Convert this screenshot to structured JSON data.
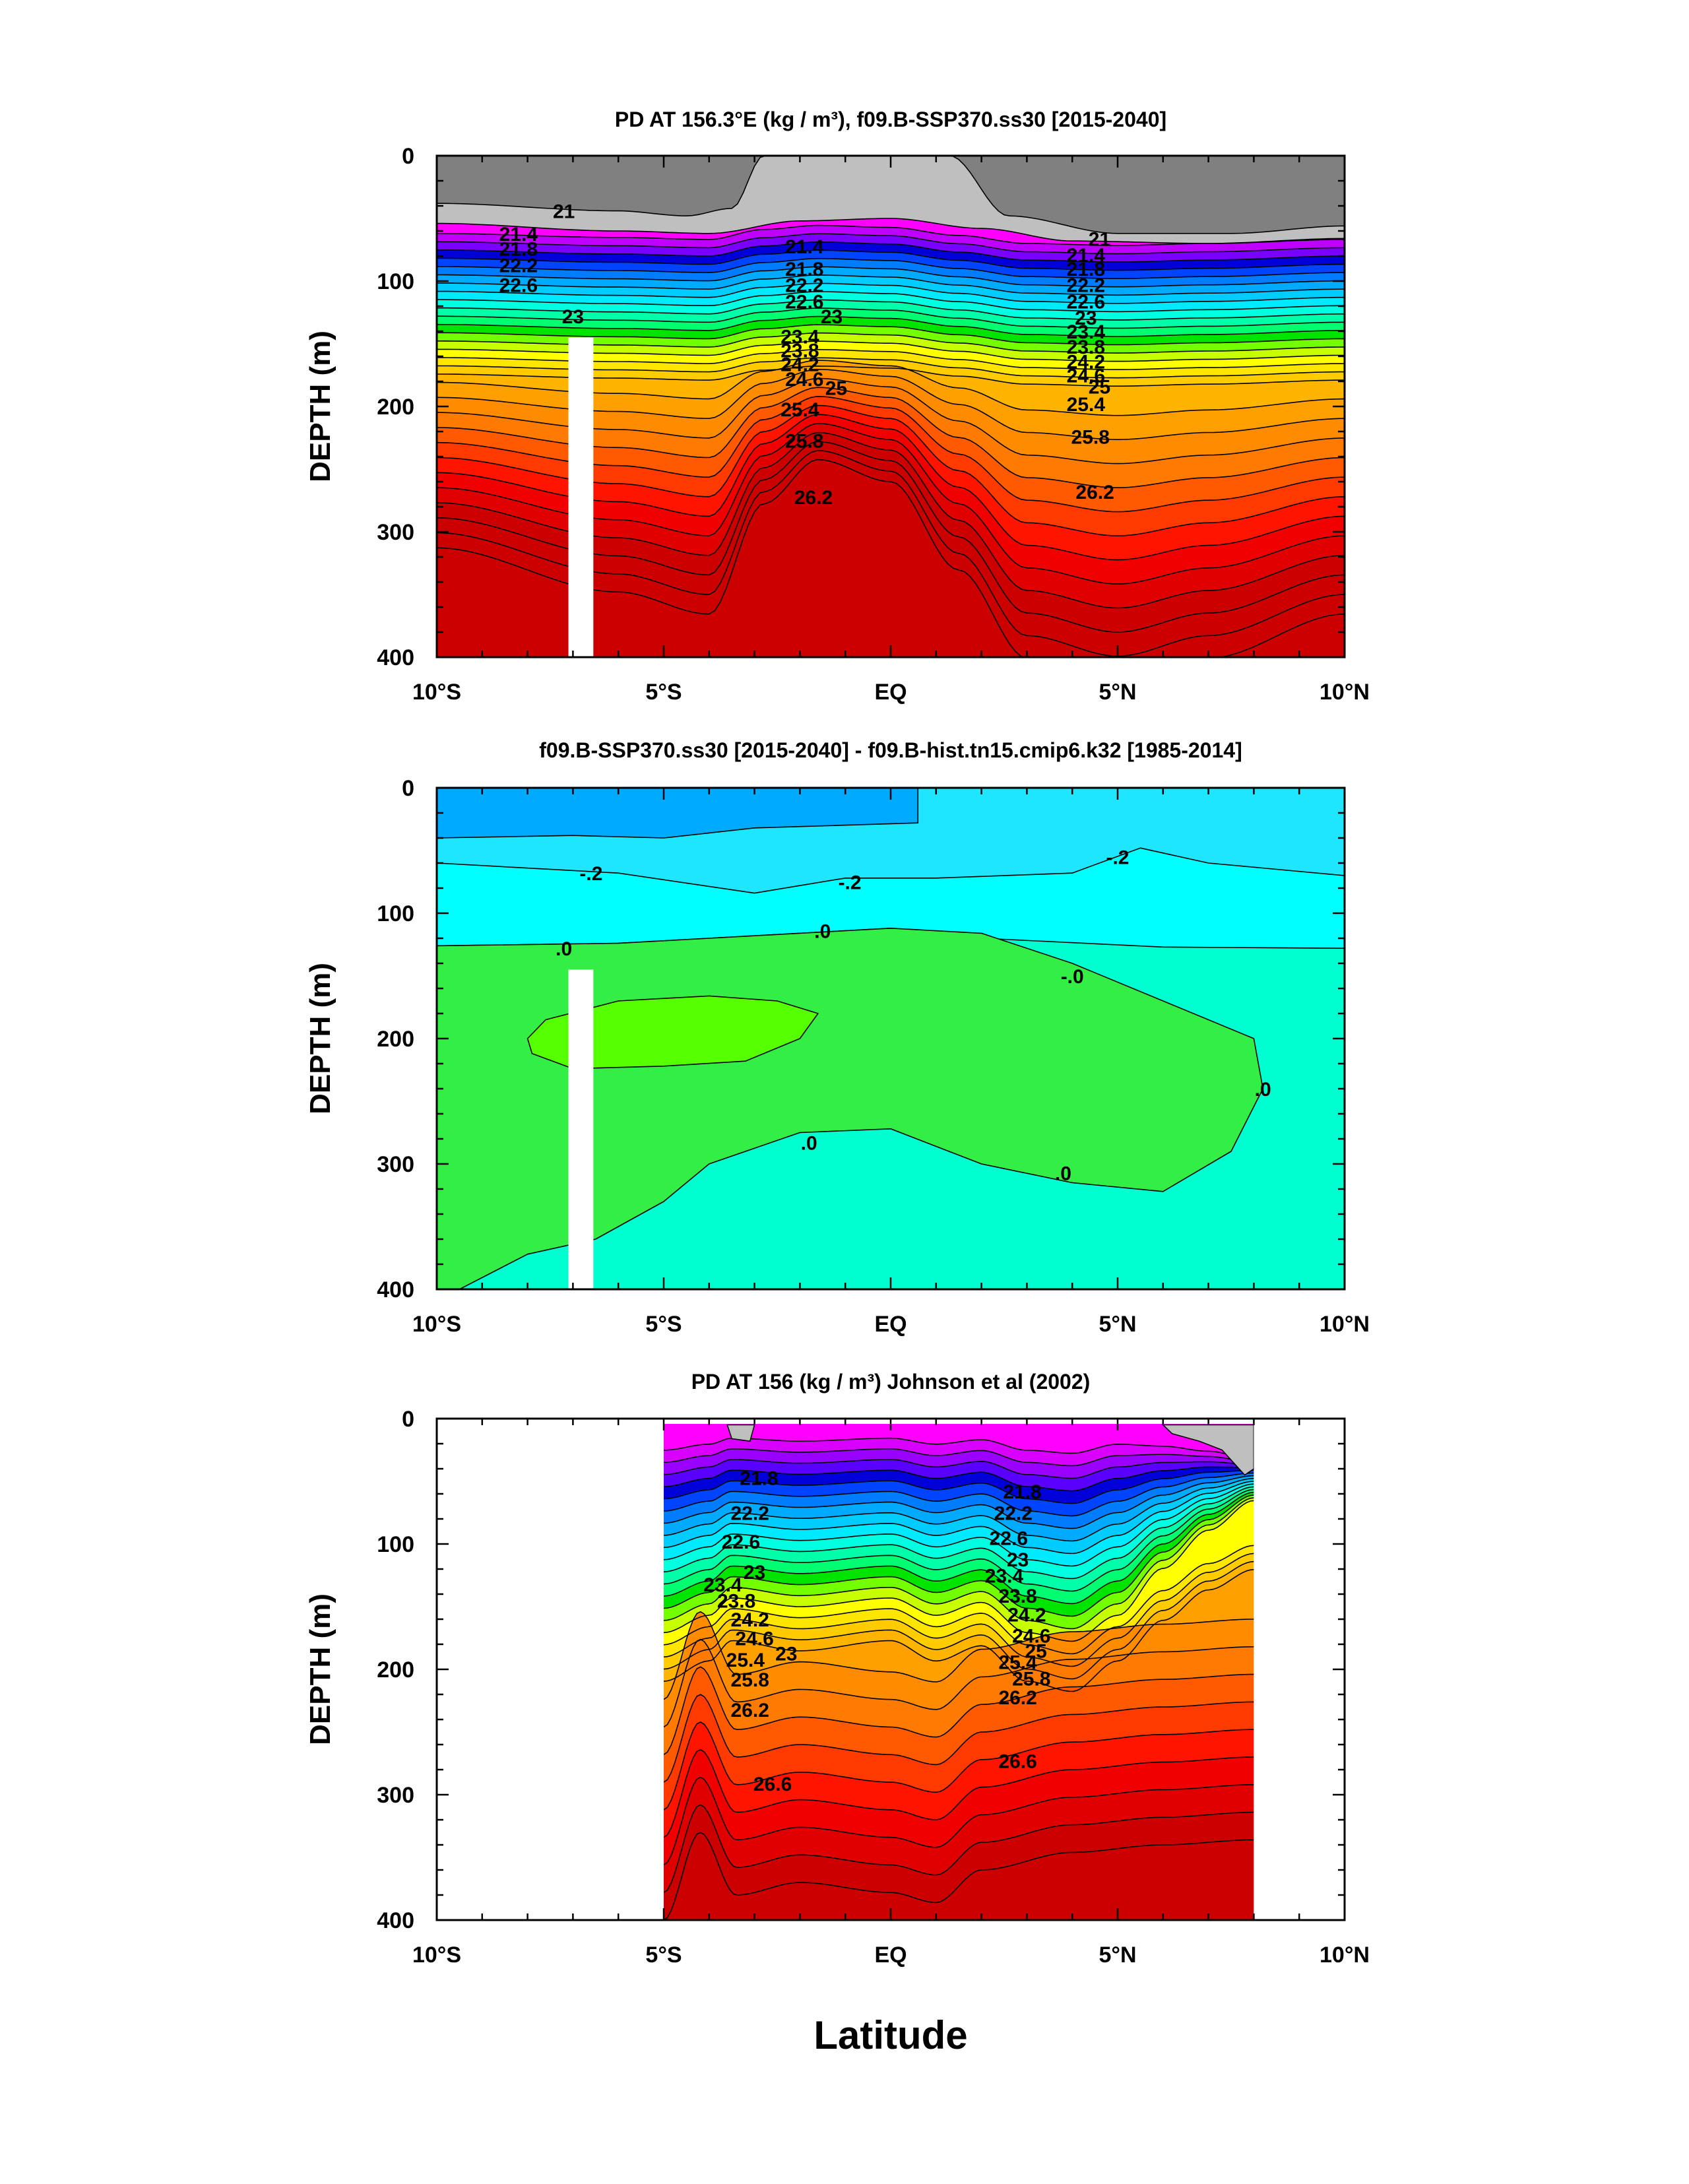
{
  "xlabel": "Latitude",
  "chart_data": [
    {
      "type": "contour",
      "title": "PD AT 156.3°E (kg / m³), f09.B-SSP370.ss30 [2015-2040]",
      "ylabel": "DEPTH (m)",
      "xlim": [
        -10,
        10
      ],
      "ylim": [
        400,
        0
      ],
      "x_ticks": [
        "10°S",
        "5°S",
        "EQ",
        "5°N",
        "10°N"
      ],
      "y_ticks": [
        "0",
        "100",
        "200",
        "300",
        "400"
      ],
      "contour_interval": 0.2,
      "colors": [
        "#808080",
        "#bfbfbf",
        "#ff00ff",
        "#c000ff",
        "#7a00ff",
        "#0000d8",
        "#0044ff",
        "#007cff",
        "#00aaff",
        "#00ccff",
        "#00eaff",
        "#00ffe0",
        "#00ffa8",
        "#00ff70",
        "#00e400",
        "#74ff00",
        "#c8ff00",
        "#ffff00",
        "#ffe600",
        "#ffcc00",
        "#ffb400",
        "#ffa000",
        "#ff8c00",
        "#ff7a00",
        "#ff5a00",
        "#ff3a00",
        "#ff1400",
        "#f00000",
        "#e00000",
        "#cc0000"
      ],
      "contour_labels": [
        {
          "text": "21",
          "lat": -7.2,
          "depth": 44
        },
        {
          "text": "21.4",
          "lat": -8.2,
          "depth": 62
        },
        {
          "text": "21.8",
          "lat": -8.2,
          "depth": 74
        },
        {
          "text": "22.2",
          "lat": -8.2,
          "depth": 87
        },
        {
          "text": "22.6",
          "lat": -8.2,
          "depth": 103
        },
        {
          "text": "23",
          "lat": -7.0,
          "depth": 128
        },
        {
          "text": "21.4",
          "lat": -1.9,
          "depth": 72
        },
        {
          "text": "21.8",
          "lat": -1.9,
          "depth": 90
        },
        {
          "text": "22.2",
          "lat": -1.9,
          "depth": 103
        },
        {
          "text": "22.6",
          "lat": -1.9,
          "depth": 116
        },
        {
          "text": "23",
          "lat": -1.3,
          "depth": 128
        },
        {
          "text": "23.4",
          "lat": -2.0,
          "depth": 144
        },
        {
          "text": "23.8",
          "lat": -2.0,
          "depth": 155
        },
        {
          "text": "24.2",
          "lat": -2.0,
          "depth": 166
        },
        {
          "text": "24.6",
          "lat": -1.9,
          "depth": 178
        },
        {
          "text": "25",
          "lat": -1.2,
          "depth": 185
        },
        {
          "text": "25.4",
          "lat": -2.0,
          "depth": 202
        },
        {
          "text": "25.8",
          "lat": -1.9,
          "depth": 227
        },
        {
          "text": "26.2",
          "lat": -1.7,
          "depth": 272
        },
        {
          "text": "21",
          "lat": 4.6,
          "depth": 66
        },
        {
          "text": "21.4",
          "lat": 4.3,
          "depth": 79
        },
        {
          "text": "21.8",
          "lat": 4.3,
          "depth": 90
        },
        {
          "text": "22.2",
          "lat": 4.3,
          "depth": 103
        },
        {
          "text": "22.6",
          "lat": 4.3,
          "depth": 116
        },
        {
          "text": "23",
          "lat": 4.3,
          "depth": 129
        },
        {
          "text": "23.4",
          "lat": 4.3,
          "depth": 140
        },
        {
          "text": "23.8",
          "lat": 4.3,
          "depth": 152
        },
        {
          "text": "24.2",
          "lat": 4.3,
          "depth": 164
        },
        {
          "text": "24.6",
          "lat": 4.3,
          "depth": 175
        },
        {
          "text": "25",
          "lat": 4.6,
          "depth": 184
        },
        {
          "text": "25.4",
          "lat": 4.3,
          "depth": 198
        },
        {
          "text": "25.8",
          "lat": 4.4,
          "depth": 224
        },
        {
          "text": "26.2",
          "lat": 4.5,
          "depth": 268
        }
      ]
    },
    {
      "type": "contour",
      "title": "f09.B-SSP370.ss30 [2015-2040] - f09.B-hist.tn15.cmip6.k32 [1985-2014]",
      "ylabel": "DEPTH (m)",
      "xlim": [
        -10,
        10
      ],
      "ylim": [
        400,
        0
      ],
      "x_ticks": [
        "10°S",
        "5°S",
        "EQ",
        "5°N",
        "10°N"
      ],
      "y_ticks": [
        "0",
        "100",
        "200",
        "300",
        "400"
      ],
      "colors": [
        "#00aaff",
        "#1ee6ff",
        "#00ffff",
        "#00ffd0",
        "#33ee44",
        "#55ff00"
      ],
      "contour_labels": [
        {
          "text": "-.2",
          "lat": -6.6,
          "depth": 68
        },
        {
          "text": ".0",
          "lat": -7.2,
          "depth": 128
        },
        {
          "text": "-.2",
          "lat": -0.9,
          "depth": 75
        },
        {
          "text": ".0",
          "lat": -1.5,
          "depth": 114
        },
        {
          "text": "-.2",
          "lat": 5.0,
          "depth": 55
        },
        {
          "text": "-.0",
          "lat": 4.0,
          "depth": 150
        },
        {
          "text": ".0",
          "lat": 8.2,
          "depth": 240
        },
        {
          "text": ".0",
          "lat": -1.8,
          "depth": 283
        },
        {
          "text": ".0",
          "lat": 3.8,
          "depth": 307
        }
      ]
    },
    {
      "type": "contour",
      "title": "PD AT 156 (kg / m³) Johnson et al (2002)",
      "ylabel": "DEPTH (m)",
      "xlim": [
        -10,
        10
      ],
      "ylim": [
        400,
        0
      ],
      "data_extent_lat": [
        -5,
        8
      ],
      "x_ticks": [
        "10°S",
        "5°S",
        "EQ",
        "5°N",
        "10°N"
      ],
      "y_ticks": [
        "0",
        "100",
        "200",
        "300",
        "400"
      ],
      "contour_interval": 0.2,
      "colors": [
        "#ff00ff",
        "#d800ff",
        "#9a00ff",
        "#5a00ff",
        "#0000d8",
        "#0044ff",
        "#007cff",
        "#00aaff",
        "#00ccff",
        "#00eaff",
        "#00ffe0",
        "#00ffa8",
        "#00ff70",
        "#00e400",
        "#74ff00",
        "#c8ff00",
        "#ffff00",
        "#ffe600",
        "#ffcc00",
        "#ffb400",
        "#ffa000",
        "#ff8c00",
        "#ff7a00",
        "#ff5a00",
        "#ff3a00",
        "#ff1400",
        "#f00000",
        "#e00000",
        "#cc0000"
      ],
      "contour_labels": [
        {
          "text": "21.8",
          "lat": -2.9,
          "depth": 47
        },
        {
          "text": "22.2",
          "lat": -3.1,
          "depth": 75
        },
        {
          "text": "22.6",
          "lat": -3.3,
          "depth": 98
        },
        {
          "text": "23",
          "lat": -3.0,
          "depth": 122
        },
        {
          "text": "23.4",
          "lat": -3.7,
          "depth": 132
        },
        {
          "text": "23.8",
          "lat": -3.4,
          "depth": 145
        },
        {
          "text": "24.2",
          "lat": -3.1,
          "depth": 160
        },
        {
          "text": "24.6",
          "lat": -3.0,
          "depth": 175
        },
        {
          "text": "23",
          "lat": -2.3,
          "depth": 187
        },
        {
          "text": "25.4",
          "lat": -3.2,
          "depth": 192
        },
        {
          "text": "25.8",
          "lat": -3.1,
          "depth": 208
        },
        {
          "text": "26.2",
          "lat": -3.1,
          "depth": 232
        },
        {
          "text": "26.6",
          "lat": -2.6,
          "depth": 291
        },
        {
          "text": "21.8",
          "lat": 2.9,
          "depth": 58
        },
        {
          "text": "22.2",
          "lat": 2.7,
          "depth": 75
        },
        {
          "text": "22.6",
          "lat": 2.6,
          "depth": 95
        },
        {
          "text": "23",
          "lat": 2.8,
          "depth": 112
        },
        {
          "text": "23.4",
          "lat": 2.5,
          "depth": 125
        },
        {
          "text": "23.8",
          "lat": 2.8,
          "depth": 141
        },
        {
          "text": "24.2",
          "lat": 3.0,
          "depth": 156
        },
        {
          "text": "24.6",
          "lat": 3.1,
          "depth": 173
        },
        {
          "text": "25",
          "lat": 3.2,
          "depth": 185
        },
        {
          "text": "25.4",
          "lat": 2.8,
          "depth": 194
        },
        {
          "text": "25.8",
          "lat": 3.1,
          "depth": 207
        },
        {
          "text": "26.2",
          "lat": 2.8,
          "depth": 222
        },
        {
          "text": "26.6",
          "lat": 2.8,
          "depth": 273
        }
      ]
    }
  ]
}
